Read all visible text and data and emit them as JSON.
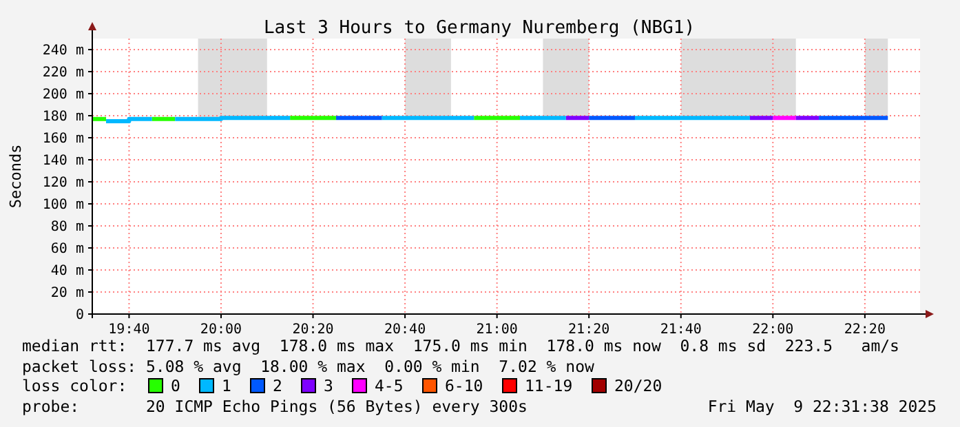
{
  "chart_data": {
    "type": "line",
    "title": "Last 3 Hours to Germany Nuremberg (NBG1)",
    "ylabel": "Seconds",
    "legend_title": "loss color:",
    "legend": "bottom",
    "grid": true,
    "series": [
      {
        "name": "0",
        "color": "#26ff00",
        "x": [
          "2025-05-09T19:32",
          "2025-05-09T19:35"
        ],
        "values": [
          177,
          177
        ]
      },
      {
        "name": "1",
        "color": "#00b8ff",
        "x": [
          "2025-05-09T19:35",
          "2025-05-09T19:40",
          "2025-05-09T19:40",
          "2025-05-09T19:45"
        ],
        "values": [
          175,
          175,
          177,
          177
        ]
      },
      {
        "name": "2",
        "color": "#0059ff",
        "x": [
          "2025-05-09T20:25",
          "2025-05-09T20:35"
        ],
        "values": [
          178,
          178
        ]
      },
      {
        "name": "3",
        "color": "#7e00ff",
        "x": [
          "2025-05-09T21:15",
          "2025-05-09T21:20"
        ],
        "values": [
          178,
          178
        ]
      },
      {
        "name": "4-5",
        "color": "#ff00ff",
        "x": [
          "2025-05-09T22:00",
          "2025-05-09T22:05"
        ],
        "values": [
          178,
          178
        ]
      },
      {
        "name": "6-10",
        "color": "#ff5500"
      },
      {
        "name": "11-19",
        "color": "#ff0000"
      },
      {
        "name": "20/20",
        "color": "#a10000"
      },
      {
        "color": "#26ff00",
        "x": [
          "2025-05-09T19:45",
          "2025-05-09T19:50"
        ],
        "values": [
          177,
          177
        ]
      },
      {
        "color": "#26ff00",
        "x": [
          "2025-05-09T20:15",
          "2025-05-09T20:25"
        ],
        "values": [
          178,
          178
        ]
      },
      {
        "color": "#26ff00",
        "x": [
          "2025-05-09T20:55",
          "2025-05-09T21:05"
        ],
        "values": [
          178,
          178
        ]
      },
      {
        "color": "#00b8ff",
        "x": [
          "2025-05-09T19:50",
          "2025-05-09T20:00",
          "2025-05-09T20:00",
          "2025-05-09T20:15"
        ],
        "values": [
          177,
          177,
          178,
          178
        ]
      },
      {
        "color": "#00b8ff",
        "x": [
          "2025-05-09T20:35",
          "2025-05-09T20:55"
        ],
        "values": [
          178,
          178
        ]
      },
      {
        "color": "#00b8ff",
        "x": [
          "2025-05-09T21:05",
          "2025-05-09T21:15"
        ],
        "values": [
          178,
          178
        ]
      },
      {
        "color": "#00b8ff",
        "x": [
          "2025-05-09T21:30",
          "2025-05-09T21:55"
        ],
        "values": [
          178,
          178
        ]
      },
      {
        "color": "#0059ff",
        "x": [
          "2025-05-09T21:20",
          "2025-05-09T21:30"
        ],
        "values": [
          178,
          178
        ]
      },
      {
        "color": "#0059ff",
        "x": [
          "2025-05-09T22:10",
          "2025-05-09T22:25"
        ],
        "values": [
          178,
          178
        ]
      },
      {
        "color": "#7e00ff",
        "x": [
          "2025-05-09T21:55",
          "2025-05-09T22:00"
        ],
        "values": [
          178,
          178
        ]
      },
      {
        "color": "#7e00ff",
        "x": [
          "2025-05-09T22:05",
          "2025-05-09T22:10"
        ],
        "values": [
          178,
          178
        ]
      }
    ],
    "bands": [
      {
        "axis": "x",
        "from": "2025-05-09T19:55",
        "to": "2025-05-09T20:10",
        "color": "#dddddd"
      },
      {
        "axis": "x",
        "from": "2025-05-09T20:40",
        "to": "2025-05-09T20:50",
        "color": "#dddddd"
      },
      {
        "axis": "x",
        "from": "2025-05-09T21:10",
        "to": "2025-05-09T21:20",
        "color": "#dddddd"
      },
      {
        "axis": "x",
        "from": "2025-05-09T21:40",
        "to": "2025-05-09T22:05",
        "color": "#dddddd"
      },
      {
        "axis": "x",
        "from": "2025-05-09T22:20",
        "to": "2025-05-09T22:25",
        "color": "#dddddd"
      }
    ],
    "xlim": [
      "2025-05-09T19:32",
      "2025-05-09T22:32"
    ],
    "xticks": [
      {
        "value": "2025-05-09T19:40",
        "label": "19:40"
      },
      {
        "value": "2025-05-09T20:00",
        "label": "20:00"
      },
      {
        "value": "2025-05-09T20:20",
        "label": "20:20"
      },
      {
        "value": "2025-05-09T20:40",
        "label": "20:40"
      },
      {
        "value": "2025-05-09T21:00",
        "label": "21:00"
      },
      {
        "value": "2025-05-09T21:20",
        "label": "21:20"
      },
      {
        "value": "2025-05-09T21:40",
        "label": "21:40"
      },
      {
        "value": "2025-05-09T22:00",
        "label": "22:00"
      },
      {
        "value": "2025-05-09T22:20",
        "label": "22:20"
      }
    ],
    "ylim": [
      0,
      250
    ],
    "yticks": [
      {
        "value": 0,
        "label": "0"
      },
      {
        "value": 20,
        "label": "20 m"
      },
      {
        "value": 40,
        "label": "40 m"
      },
      {
        "value": 60,
        "label": "60 m"
      },
      {
        "value": 80,
        "label": "80 m"
      },
      {
        "value": 100,
        "label": "100 m"
      },
      {
        "value": 120,
        "label": "120 m"
      },
      {
        "value": 140,
        "label": "140 m"
      },
      {
        "value": 160,
        "label": "160 m"
      },
      {
        "value": 180,
        "label": "180 m"
      },
      {
        "value": 200,
        "label": "200 m"
      },
      {
        "value": 220,
        "label": "220 m"
      },
      {
        "value": 240,
        "label": "240 m"
      }
    ],
    "annotations": [
      "median rtt:  177.7 ms avg  178.0 ms max  175.0 ms min  178.0 ms now  0.8 ms sd  223.5   am/s",
      "packet loss: 5.08 % avg  18.00 % max  0.00 % min  7.02 % now",
      "probe:       20 ICMP Echo Pings (56 Bytes) every 300s",
      "Fri May  9 22:31:38 2025"
    ]
  }
}
